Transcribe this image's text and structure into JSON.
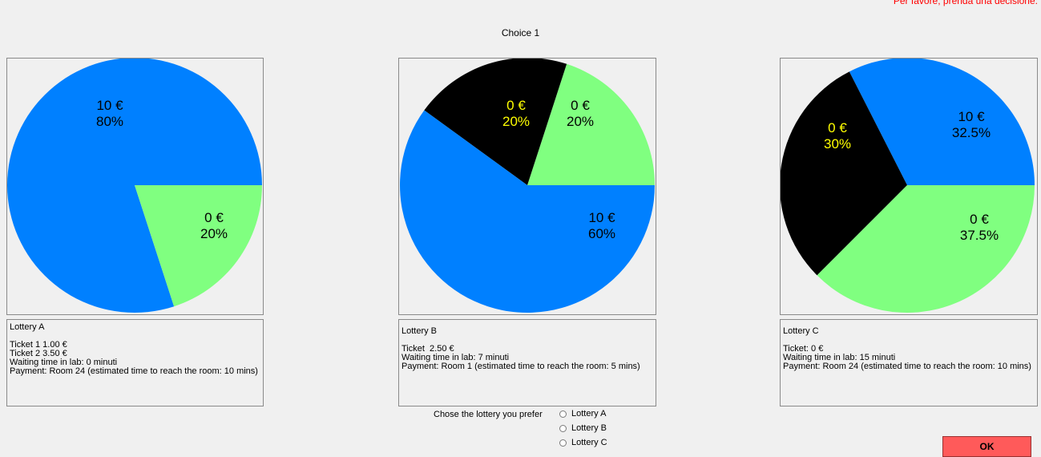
{
  "header": {
    "notice": "Per favore, prenda una decisione.",
    "title": "Choice 1"
  },
  "colors": {
    "blue": "#0080ff",
    "green": "#80ff80",
    "black": "#000000",
    "label_dark": "#000000",
    "label_on_black": "#ffff00",
    "ok_button": "#ff5a5a",
    "notice": "#ff0000"
  },
  "lotteries": [
    {
      "id": "A",
      "description": [
        "Lottery A",
        "",
        "Ticket 1 1.00 €",
        "Ticket 2 3.50 €",
        "Waiting time in lab: 0 minuti",
        "Payment: Room 24 (estimated time to reach the room: 10 mins)"
      ]
    },
    {
      "id": "B",
      "description": [
        "Lottery B",
        "",
        "Ticket  2.50 €",
        "Waiting time in lab: 7 minuti",
        "Payment: Room 1 (estimated time to reach the room: 5 mins)"
      ]
    },
    {
      "id": "C",
      "description": [
        "Lottery C",
        "",
        "Ticket: 0 €",
        "Waiting time in lab: 15 minuti",
        "Payment: Room 24 (estimated time to reach the room: 10 mins)"
      ]
    }
  ],
  "chart_data": [
    {
      "type": "pie",
      "categories": [
        "10 €",
        "0 €"
      ],
      "values": [
        80,
        20
      ],
      "labels": [
        "80%",
        "20%"
      ],
      "colors": [
        "#0080ff",
        "#80ff80"
      ]
    },
    {
      "type": "pie",
      "categories": [
        "0 €",
        "0 €",
        "10 €"
      ],
      "values": [
        20,
        20,
        60
      ],
      "labels": [
        "20%",
        "20%",
        "60%"
      ],
      "colors": [
        "#80ff80",
        "#000000",
        "#0080ff"
      ]
    },
    {
      "type": "pie",
      "categories": [
        "10 €",
        "0 €",
        "0 €"
      ],
      "values": [
        32.5,
        37.5,
        30
      ],
      "labels": [
        "32.5%",
        "37.5%",
        "30%"
      ],
      "colors": [
        "#0080ff",
        "#80ff80",
        "#000000"
      ]
    }
  ],
  "selection": {
    "prompt": "Chose the lottery you prefer",
    "options": [
      "Lottery A",
      "Lottery B",
      "Lottery C"
    ]
  },
  "ok_label": "OK"
}
